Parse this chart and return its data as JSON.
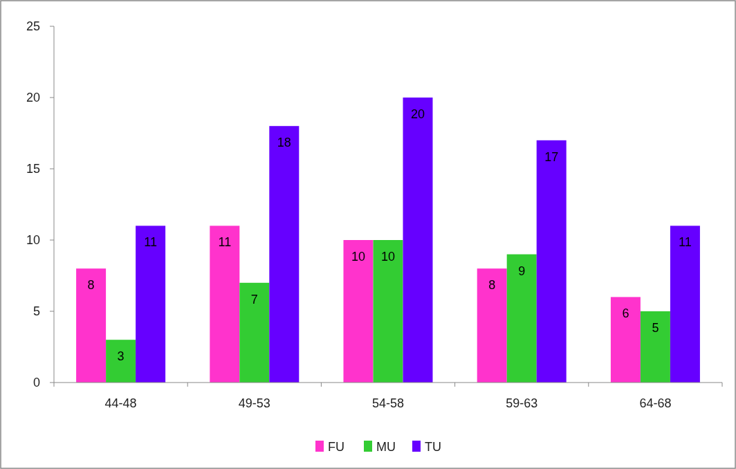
{
  "chart_data": {
    "type": "bar",
    "categories": [
      "44-48",
      "49-53",
      "54-58",
      "59-63",
      "64-68"
    ],
    "series": [
      {
        "name": "FU",
        "color": "#ff33cc",
        "values": [
          8,
          11,
          10,
          8,
          6
        ]
      },
      {
        "name": "MU",
        "color": "#33cc33",
        "values": [
          3,
          7,
          10,
          9,
          5
        ]
      },
      {
        "name": "TU",
        "color": "#6600ff",
        "values": [
          11,
          18,
          20,
          17,
          11
        ]
      }
    ],
    "ylim": [
      0,
      25
    ],
    "yticks": [
      0,
      5,
      10,
      15,
      20,
      25
    ],
    "data_labels": true,
    "legend": "bottom",
    "grid": false
  }
}
